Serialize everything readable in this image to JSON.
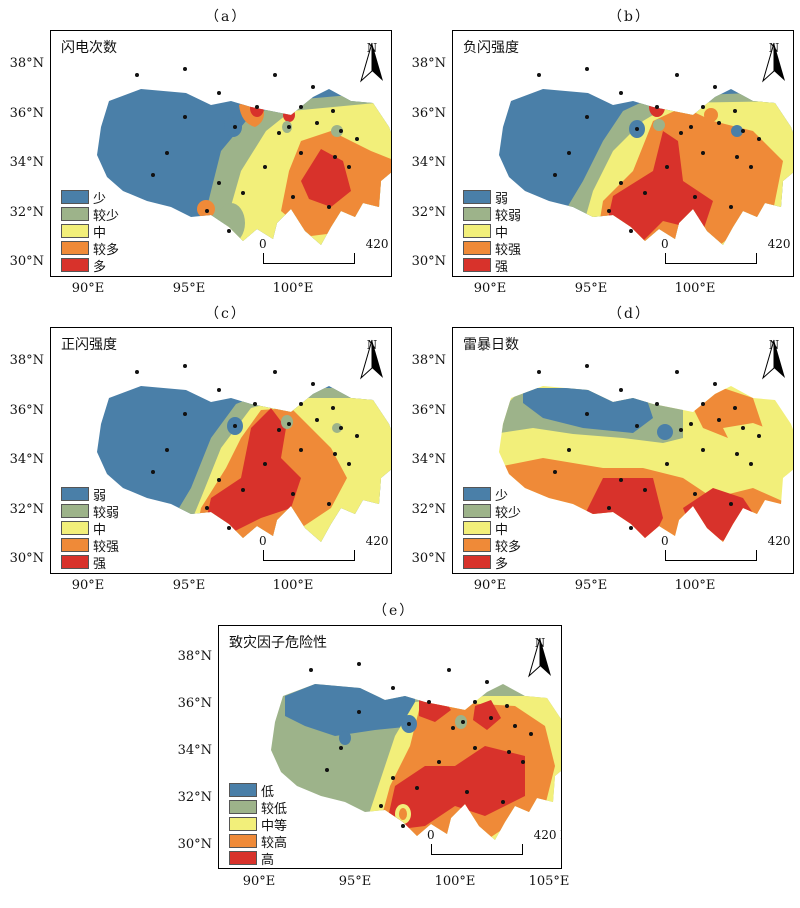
{
  "panels": {
    "a": {
      "label": "（a）",
      "title": "闪电次数",
      "legend": [
        "少",
        "较少",
        "中",
        "较多",
        "多"
      ]
    },
    "b": {
      "label": "（b）",
      "title": "负闪强度",
      "legend": [
        "弱",
        "较弱",
        "中",
        "较强",
        "强"
      ]
    },
    "c": {
      "label": "（c）",
      "title": "正闪强度",
      "legend": [
        "弱",
        "较弱",
        "中",
        "较强",
        "强"
      ]
    },
    "d": {
      "label": "（d）",
      "title": "雷暴日数",
      "legend": [
        "少",
        "较少",
        "中",
        "较多",
        "多"
      ]
    },
    "e": {
      "label": "（e）",
      "title": "致灾因子危险性",
      "legend": [
        "低",
        "较低",
        "中等",
        "较高",
        "高"
      ]
    }
  },
  "lat_ticks": [
    "38°N",
    "36°N",
    "34°N",
    "32°N",
    "30°N"
  ],
  "lon_ticks_small": [
    "90°E",
    "95°E",
    "100°E"
  ],
  "lon_ticks_large": [
    "90°E",
    "95°E",
    "100°E",
    "105°E"
  ],
  "north": "N",
  "scale": {
    "zero": "0",
    "max": "420 km"
  },
  "colors": {
    "c1": "#4a7fa8",
    "c2": "#9db38a",
    "c3": "#f2ef7a",
    "c4": "#ef8a38",
    "c5": "#d8322b"
  }
}
